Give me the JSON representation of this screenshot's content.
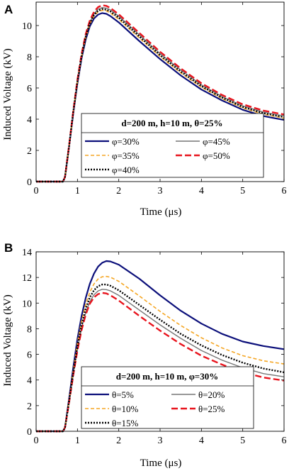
{
  "chart_data": [
    {
      "type": "line",
      "panel": "A",
      "xlabel": "Time (μs)",
      "ylabel": "Induced Voltage (kV)",
      "xlim": [
        0,
        6
      ],
      "ylim": [
        0,
        11.5
      ],
      "xticks": [
        0,
        1,
        2,
        3,
        4,
        5,
        6
      ],
      "yticks": [
        0,
        2,
        4,
        6,
        8,
        10
      ],
      "grid": false,
      "legend_placement": "bottom-right",
      "legend_title": "d=200 m, h=10 m, θ=25%",
      "series": [
        {
          "name": "φ=30%",
          "color": "#0b0f7a",
          "dash": "solid",
          "width": 2.2,
          "points": [
            [
              0,
              0
            ],
            [
              0.65,
              0
            ],
            [
              0.7,
              0.3
            ],
            [
              0.8,
              2.3
            ],
            [
              0.9,
              4.4
            ],
            [
              1.0,
              6.3
            ],
            [
              1.1,
              7.9
            ],
            [
              1.2,
              9.1
            ],
            [
              1.3,
              9.95
            ],
            [
              1.4,
              10.45
            ],
            [
              1.5,
              10.7
            ],
            [
              1.6,
              10.8
            ],
            [
              1.7,
              10.75
            ],
            [
              1.8,
              10.6
            ],
            [
              2.0,
              10.2
            ],
            [
              2.5,
              9.0
            ],
            [
              3.0,
              7.85
            ],
            [
              3.5,
              6.8
            ],
            [
              4.0,
              5.9
            ],
            [
              4.5,
              5.2
            ],
            [
              5.0,
              4.6
            ],
            [
              5.5,
              4.2
            ],
            [
              6.0,
              3.95
            ]
          ]
        },
        {
          "name": "φ=45%",
          "color": "#777777",
          "dash": "solid",
          "width": 1.4,
          "points": [
            [
              0,
              0
            ],
            [
              0.65,
              0
            ],
            [
              0.7,
              0.3
            ],
            [
              0.8,
              2.35
            ],
            [
              0.9,
              4.5
            ],
            [
              1.0,
              6.45
            ],
            [
              1.1,
              8.1
            ],
            [
              1.2,
              9.35
            ],
            [
              1.3,
              10.2
            ],
            [
              1.4,
              10.75
            ],
            [
              1.5,
              11.05
            ],
            [
              1.6,
              11.15
            ],
            [
              1.7,
              11.12
            ],
            [
              1.8,
              11.0
            ],
            [
              2.0,
              10.6
            ],
            [
              2.5,
              9.4
            ],
            [
              3.0,
              8.2
            ],
            [
              3.5,
              7.15
            ],
            [
              4.0,
              6.2
            ],
            [
              4.5,
              5.45
            ],
            [
              5.0,
              4.85
            ],
            [
              5.5,
              4.45
            ],
            [
              6.0,
              4.2
            ]
          ]
        },
        {
          "name": "φ=35%",
          "color": "#f5a623",
          "dash": "5,3",
          "width": 1.6,
          "points": [
            [
              0,
              0
            ],
            [
              0.65,
              0
            ],
            [
              0.7,
              0.3
            ],
            [
              0.8,
              2.32
            ],
            [
              0.9,
              4.45
            ],
            [
              1.0,
              6.38
            ],
            [
              1.1,
              8.0
            ],
            [
              1.2,
              9.22
            ],
            [
              1.3,
              10.08
            ],
            [
              1.4,
              10.6
            ],
            [
              1.5,
              10.88
            ],
            [
              1.6,
              10.98
            ],
            [
              1.7,
              10.94
            ],
            [
              1.8,
              10.8
            ],
            [
              2.0,
              10.4
            ],
            [
              2.5,
              9.2
            ],
            [
              3.0,
              8.02
            ],
            [
              3.5,
              6.97
            ],
            [
              4.0,
              6.05
            ],
            [
              4.5,
              5.32
            ],
            [
              5.0,
              4.72
            ],
            [
              5.5,
              4.32
            ],
            [
              6.0,
              4.07
            ]
          ]
        },
        {
          "name": "φ=50%",
          "color": "#e8141d",
          "dash": "9,4",
          "width": 2.4,
          "points": [
            [
              0,
              0
            ],
            [
              0.65,
              0
            ],
            [
              0.7,
              0.3
            ],
            [
              0.8,
              2.37
            ],
            [
              0.9,
              4.55
            ],
            [
              1.0,
              6.52
            ],
            [
              1.1,
              8.18
            ],
            [
              1.2,
              9.45
            ],
            [
              1.3,
              10.32
            ],
            [
              1.4,
              10.88
            ],
            [
              1.5,
              11.18
            ],
            [
              1.6,
              11.3
            ],
            [
              1.7,
              11.26
            ],
            [
              1.8,
              11.12
            ],
            [
              2.0,
              10.72
            ],
            [
              2.5,
              9.52
            ],
            [
              3.0,
              8.32
            ],
            [
              3.5,
              7.25
            ],
            [
              4.0,
              6.3
            ],
            [
              4.5,
              5.55
            ],
            [
              5.0,
              4.95
            ],
            [
              5.5,
              4.55
            ],
            [
              6.0,
              4.3
            ]
          ]
        },
        {
          "name": "φ=40%",
          "color": "#000000",
          "dash": "2,2",
          "width": 2.4,
          "points": [
            [
              0,
              0
            ],
            [
              0.65,
              0
            ],
            [
              0.7,
              0.3
            ],
            [
              0.8,
              2.34
            ],
            [
              0.9,
              4.48
            ],
            [
              1.0,
              6.42
            ],
            [
              1.1,
              8.05
            ],
            [
              1.2,
              9.28
            ],
            [
              1.3,
              10.14
            ],
            [
              1.4,
              10.68
            ],
            [
              1.5,
              10.96
            ],
            [
              1.6,
              11.06
            ],
            [
              1.7,
              11.02
            ],
            [
              1.8,
              10.9
            ],
            [
              2.0,
              10.5
            ],
            [
              2.5,
              9.3
            ],
            [
              3.0,
              8.1
            ],
            [
              3.5,
              7.05
            ],
            [
              4.0,
              6.12
            ],
            [
              4.5,
              5.38
            ],
            [
              5.0,
              4.78
            ],
            [
              5.5,
              4.38
            ],
            [
              6.0,
              4.13
            ]
          ]
        }
      ]
    },
    {
      "type": "line",
      "panel": "B",
      "xlabel": "Time (μs)",
      "ylabel": "Induced Voltage (kV)",
      "xlim": [
        0,
        6
      ],
      "ylim": [
        0,
        14
      ],
      "xticks": [
        0,
        1,
        2,
        3,
        4,
        5,
        6
      ],
      "yticks": [
        0,
        2,
        4,
        6,
        8,
        10,
        12,
        14
      ],
      "grid": false,
      "legend_placement": "bottom-right",
      "legend_title": "d=200 m, h=10 m, φ=30%",
      "series": [
        {
          "name": "θ=5%",
          "color": "#0b0f7a",
          "dash": "solid",
          "width": 2.2,
          "points": [
            [
              0,
              0
            ],
            [
              0.65,
              0
            ],
            [
              0.7,
              0.3
            ],
            [
              0.8,
              2.6
            ],
            [
              0.9,
              5.0
            ],
            [
              1.0,
              7.2
            ],
            [
              1.1,
              9.0
            ],
            [
              1.2,
              10.4
            ],
            [
              1.3,
              11.5
            ],
            [
              1.4,
              12.3
            ],
            [
              1.5,
              12.85
            ],
            [
              1.6,
              13.15
            ],
            [
              1.7,
              13.28
            ],
            [
              1.8,
              13.25
            ],
            [
              2.0,
              13.0
            ],
            [
              2.5,
              11.9
            ],
            [
              3.0,
              10.6
            ],
            [
              3.5,
              9.4
            ],
            [
              4.0,
              8.4
            ],
            [
              4.5,
              7.6
            ],
            [
              5.0,
              7.0
            ],
            [
              5.5,
              6.65
            ],
            [
              6.0,
              6.4
            ]
          ]
        },
        {
          "name": "θ=20%",
          "color": "#777777",
          "dash": "solid",
          "width": 1.4,
          "points": [
            [
              0,
              0
            ],
            [
              0.65,
              0
            ],
            [
              0.7,
              0.3
            ],
            [
              0.8,
              2.35
            ],
            [
              0.9,
              4.5
            ],
            [
              1.0,
              6.45
            ],
            [
              1.1,
              8.05
            ],
            [
              1.2,
              9.25
            ],
            [
              1.3,
              10.1
            ],
            [
              1.4,
              10.65
            ],
            [
              1.5,
              10.95
            ],
            [
              1.6,
              11.08
            ],
            [
              1.7,
              11.05
            ],
            [
              1.8,
              10.95
            ],
            [
              2.0,
              10.6
            ],
            [
              2.5,
              9.45
            ],
            [
              3.0,
              8.3
            ],
            [
              3.5,
              7.25
            ],
            [
              4.0,
              6.3
            ],
            [
              4.5,
              5.55
            ],
            [
              5.0,
              4.95
            ],
            [
              5.5,
              4.5
            ],
            [
              6.0,
              4.25
            ]
          ]
        },
        {
          "name": "θ=10%",
          "color": "#f5a623",
          "dash": "5,3",
          "width": 1.6,
          "points": [
            [
              0,
              0
            ],
            [
              0.65,
              0
            ],
            [
              0.7,
              0.3
            ],
            [
              0.8,
              2.5
            ],
            [
              0.9,
              4.8
            ],
            [
              1.0,
              6.9
            ],
            [
              1.1,
              8.6
            ],
            [
              1.2,
              9.9
            ],
            [
              1.3,
              10.85
            ],
            [
              1.4,
              11.5
            ],
            [
              1.5,
              11.88
            ],
            [
              1.6,
              12.05
            ],
            [
              1.7,
              12.08
            ],
            [
              1.8,
              12.02
            ],
            [
              2.0,
              11.7
            ],
            [
              2.5,
              10.55
            ],
            [
              3.0,
              9.35
            ],
            [
              3.5,
              8.25
            ],
            [
              4.0,
              7.3
            ],
            [
              4.5,
              6.5
            ],
            [
              5.0,
              5.9
            ],
            [
              5.5,
              5.5
            ],
            [
              6.0,
              5.25
            ]
          ]
        },
        {
          "name": "θ=25%",
          "color": "#e8141d",
          "dash": "9,4",
          "width": 2.4,
          "points": [
            [
              0,
              0
            ],
            [
              0.65,
              0
            ],
            [
              0.7,
              0.3
            ],
            [
              0.8,
              2.3
            ],
            [
              0.9,
              4.4
            ],
            [
              1.0,
              6.3
            ],
            [
              1.1,
              7.9
            ],
            [
              1.2,
              9.1
            ],
            [
              1.3,
              9.95
            ],
            [
              1.4,
              10.45
            ],
            [
              1.5,
              10.7
            ],
            [
              1.6,
              10.8
            ],
            [
              1.7,
              10.75
            ],
            [
              1.8,
              10.6
            ],
            [
              2.0,
              10.2
            ],
            [
              2.5,
              9.0
            ],
            [
              3.0,
              7.85
            ],
            [
              3.5,
              6.8
            ],
            [
              4.0,
              5.9
            ],
            [
              4.5,
              5.2
            ],
            [
              5.0,
              4.6
            ],
            [
              5.5,
              4.2
            ],
            [
              6.0,
              3.95
            ]
          ]
        },
        {
          "name": "θ=15%",
          "color": "#000000",
          "dash": "2,2",
          "width": 2.4,
          "points": [
            [
              0,
              0
            ],
            [
              0.65,
              0
            ],
            [
              0.7,
              0.3
            ],
            [
              0.8,
              2.4
            ],
            [
              0.9,
              4.6
            ],
            [
              1.0,
              6.6
            ],
            [
              1.1,
              8.3
            ],
            [
              1.2,
              9.55
            ],
            [
              1.3,
              10.45
            ],
            [
              1.4,
              11.0
            ],
            [
              1.5,
              11.32
            ],
            [
              1.6,
              11.45
            ],
            [
              1.7,
              11.45
            ],
            [
              1.8,
              11.35
            ],
            [
              2.0,
              11.0
            ],
            [
              2.5,
              9.85
            ],
            [
              3.0,
              8.7
            ],
            [
              3.5,
              7.6
            ],
            [
              4.0,
              6.7
            ],
            [
              4.5,
              5.95
            ],
            [
              5.0,
              5.35
            ],
            [
              5.5,
              4.9
            ],
            [
              6.0,
              4.6
            ]
          ]
        }
      ]
    }
  ]
}
